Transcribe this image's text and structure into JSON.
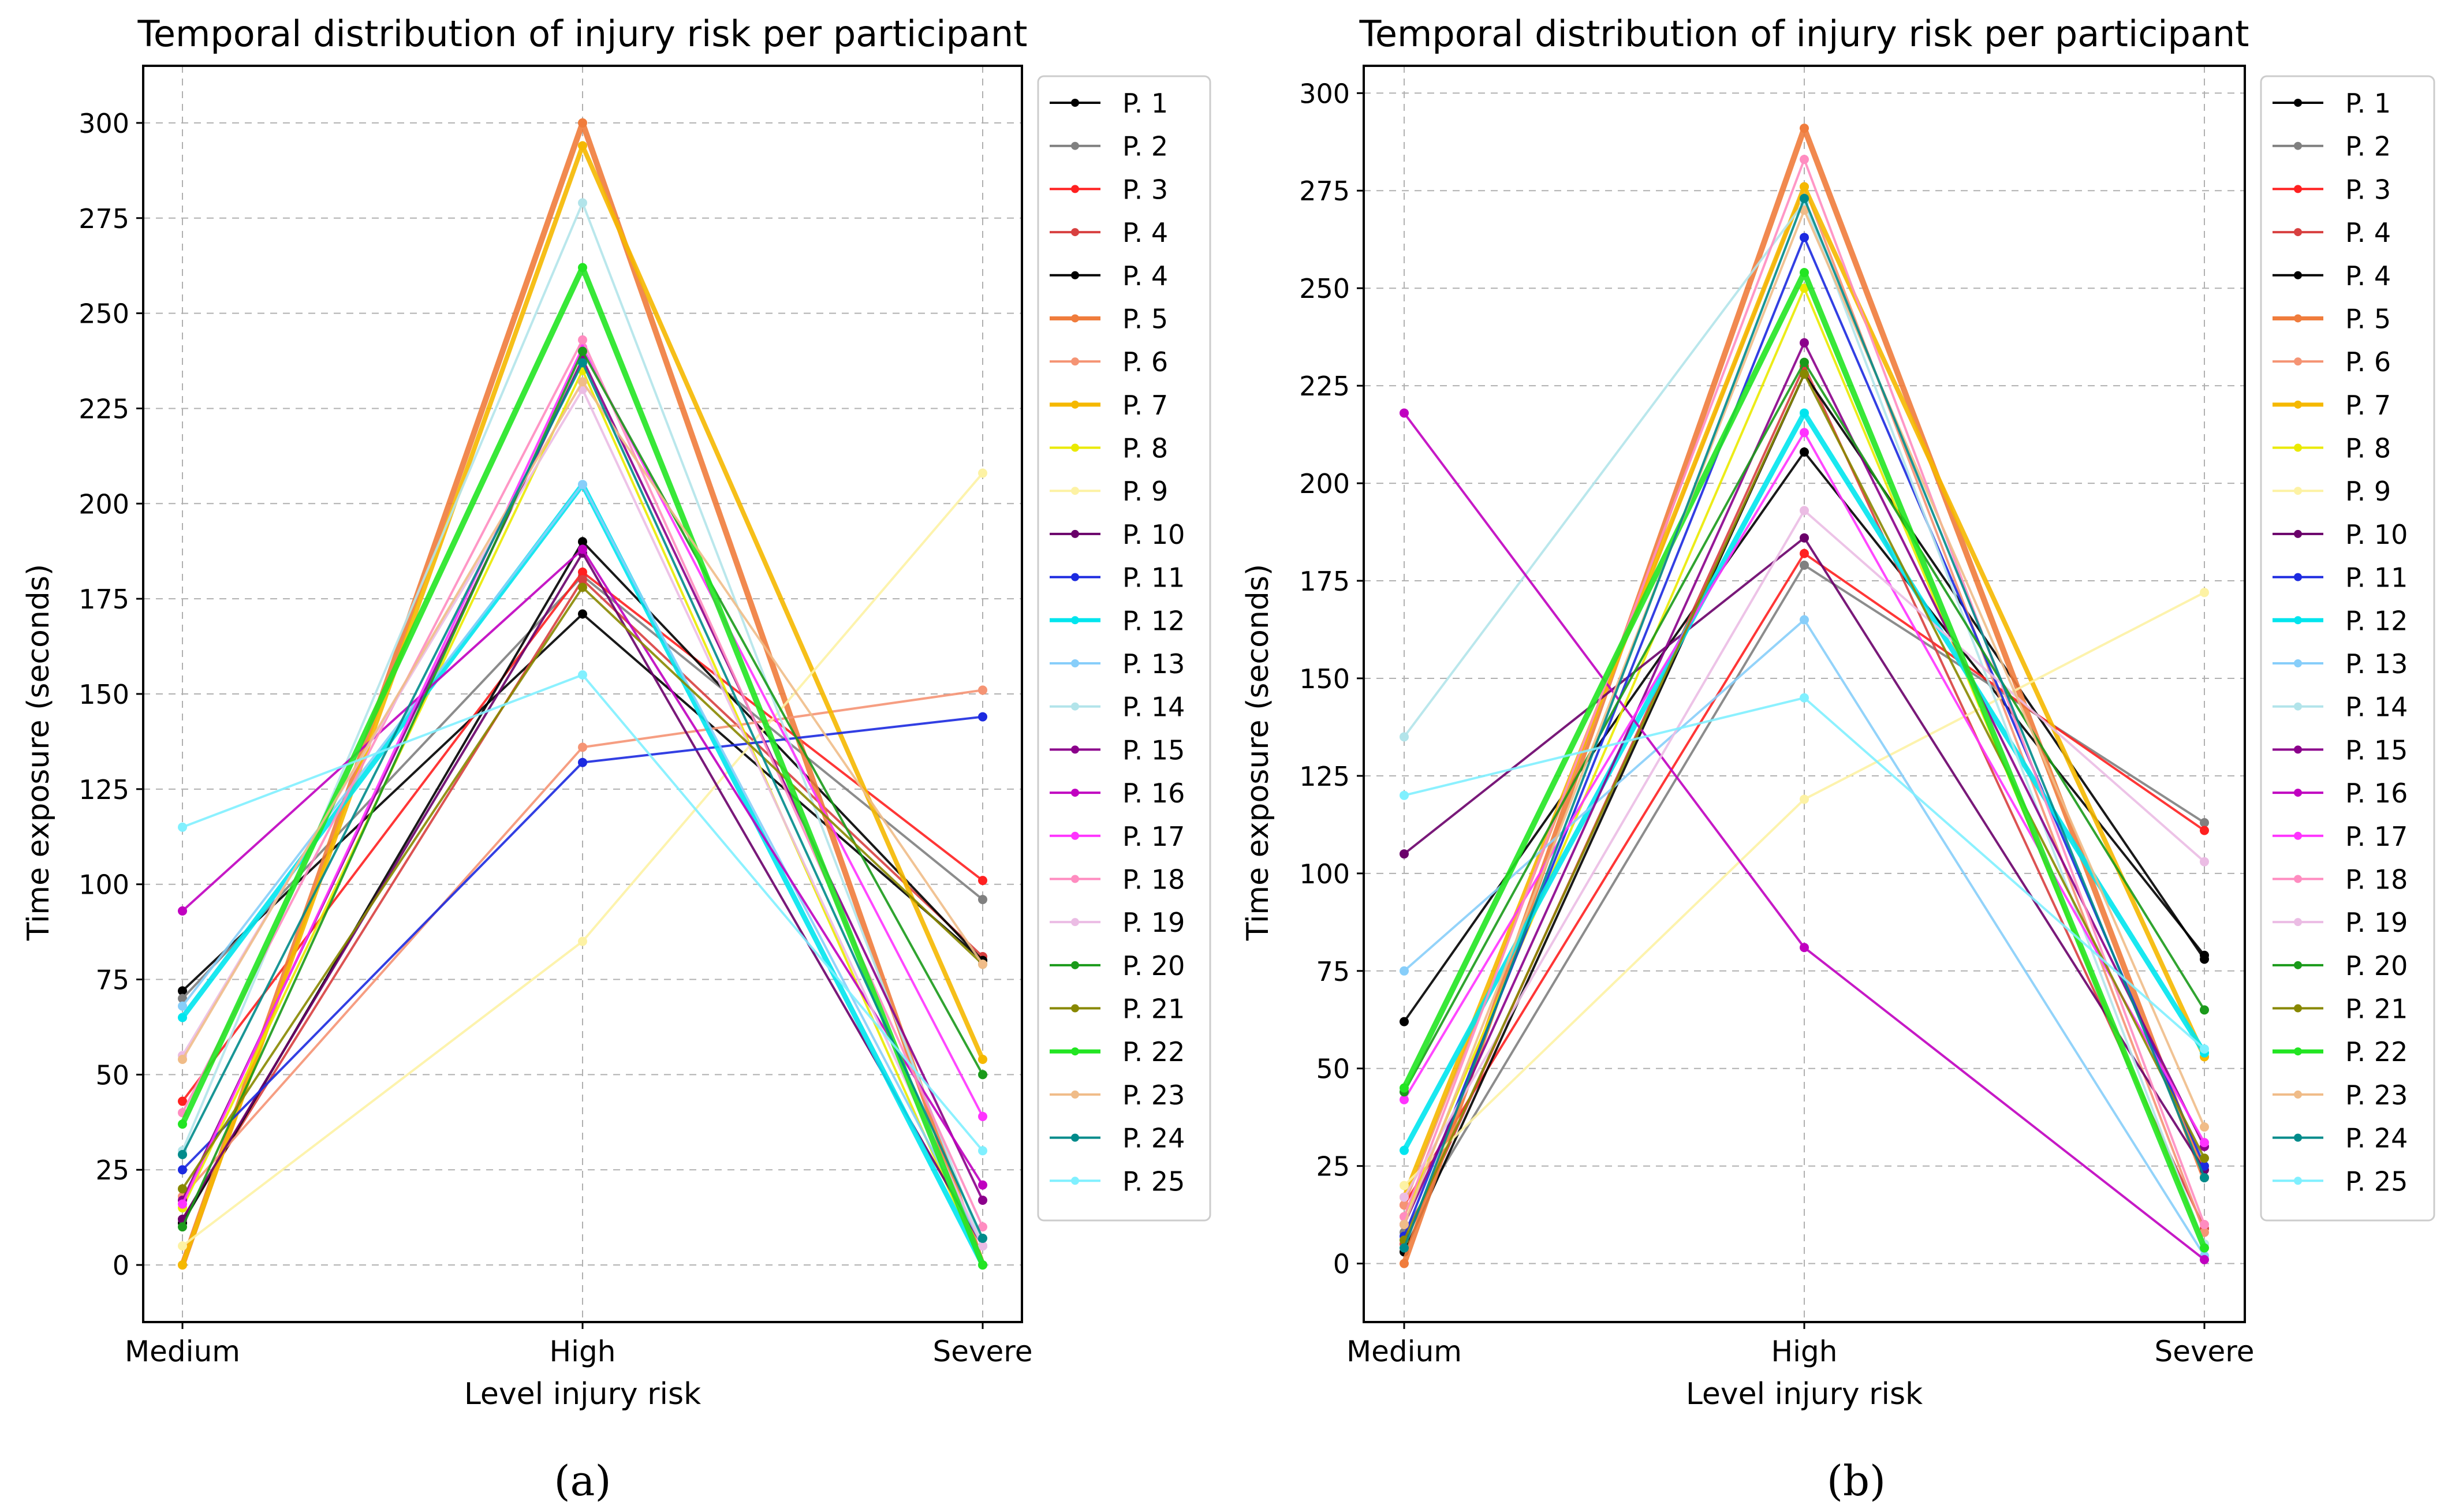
{
  "figure": {
    "panel_tags": [
      "(a)",
      "(b)"
    ]
  },
  "colors": [
    "#000000",
    "#808080",
    "#ff2020",
    "#d84040",
    "#000000",
    "#f07c3c",
    "#f59474",
    "#f5b800",
    "#eaea00",
    "#fdf2a4",
    "#6a006a",
    "#1c2ae0",
    "#00e5ee",
    "#87cefa",
    "#b2e4ea",
    "#8b008b",
    "#c000c0",
    "#ff33ff",
    "#ff8cc0",
    "#ebbce4",
    "#1a9a1a",
    "#888800",
    "#22e522",
    "#f0bc88",
    "#008b8b",
    "#80f0ff"
  ],
  "chart_data": [
    {
      "type": "line",
      "title": "Temporal distribution of injury risk per participant",
      "xlabel": "Level injury risk",
      "ylabel": "Time exposure (seconds)",
      "categories": [
        "Medium",
        "High",
        "Severe"
      ],
      "ylim": [
        -15,
        315
      ],
      "yticks": [
        0,
        25,
        50,
        75,
        100,
        125,
        150,
        175,
        200,
        225,
        250,
        275,
        300
      ],
      "grid": true,
      "legend_position": "outside-right",
      "series": [
        {
          "name": "P. 1",
          "values": [
            72,
            171,
            80
          ]
        },
        {
          "name": "P. 2",
          "values": [
            70,
            181,
            96
          ]
        },
        {
          "name": "P. 3",
          "values": [
            43,
            182,
            101
          ]
        },
        {
          "name": "P. 4",
          "values": [
            12,
            180,
            81
          ]
        },
        {
          "name": "P. 4",
          "values": [
            11,
            190,
            80
          ]
        },
        {
          "name": "P. 5",
          "values": [
            0,
            300,
            0
          ]
        },
        {
          "name": "P. 6",
          "values": [
            18,
            136,
            151
          ]
        },
        {
          "name": "P. 7",
          "values": [
            0,
            294,
            54
          ]
        },
        {
          "name": "P. 8",
          "values": [
            15,
            235,
            0
          ]
        },
        {
          "name": "P. 9",
          "values": [
            5,
            85,
            208
          ]
        },
        {
          "name": "P. 10",
          "values": [
            12,
            187,
            5
          ]
        },
        {
          "name": "P. 11",
          "values": [
            25,
            132,
            144
          ]
        },
        {
          "name": "P. 12",
          "values": [
            65,
            205,
            0
          ]
        },
        {
          "name": "P. 13",
          "values": [
            68,
            205,
            5
          ]
        },
        {
          "name": "P. 14",
          "values": [
            30,
            279,
            5
          ]
        },
        {
          "name": "P. 15",
          "values": [
            17,
            238,
            17
          ]
        },
        {
          "name": "P. 16",
          "values": [
            93,
            188,
            21
          ]
        },
        {
          "name": "P. 17",
          "values": [
            16,
            241,
            39
          ]
        },
        {
          "name": "P. 18",
          "values": [
            40,
            243,
            10
          ]
        },
        {
          "name": "P. 19",
          "values": [
            55,
            230,
            5
          ]
        },
        {
          "name": "P. 20",
          "values": [
            10,
            240,
            50
          ]
        },
        {
          "name": "P. 21",
          "values": [
            20,
            178,
            79
          ]
        },
        {
          "name": "P. 22",
          "values": [
            37,
            262,
            0
          ]
        },
        {
          "name": "P. 23",
          "values": [
            54,
            232,
            79
          ]
        },
        {
          "name": "P. 24",
          "values": [
            29,
            237,
            7
          ]
        },
        {
          "name": "P. 25",
          "values": [
            115,
            155,
            30
          ]
        }
      ]
    },
    {
      "type": "line",
      "title": "Temporal distribution of injury risk per participant",
      "xlabel": "Level injury risk",
      "ylabel": "Time exposure (seconds)",
      "categories": [
        "Medium",
        "High",
        "Severe"
      ],
      "ylim": [
        -15,
        307
      ],
      "yticks": [
        0,
        25,
        50,
        75,
        100,
        125,
        150,
        175,
        200,
        225,
        250,
        275,
        300
      ],
      "grid": true,
      "legend_position": "outside-right",
      "series": [
        {
          "name": "P. 1",
          "values": [
            62,
            208,
            79
          ]
        },
        {
          "name": "P. 2",
          "values": [
            8,
            179,
            113
          ]
        },
        {
          "name": "P. 3",
          "values": [
            15,
            182,
            111
          ]
        },
        {
          "name": "P. 4",
          "values": [
            5,
            230,
            9
          ]
        },
        {
          "name": "P. 4",
          "values": [
            3,
            228,
            78
          ]
        },
        {
          "name": "P. 5",
          "values": [
            0,
            291,
            22
          ]
        },
        {
          "name": "P. 6",
          "values": [
            15,
            276,
            8
          ]
        },
        {
          "name": "P. 7",
          "values": [
            17,
            276,
            53
          ]
        },
        {
          "name": "P. 8",
          "values": [
            12,
            250,
            5
          ]
        },
        {
          "name": "P. 9",
          "values": [
            20,
            119,
            172
          ]
        },
        {
          "name": "P. 10",
          "values": [
            105,
            186,
            24
          ]
        },
        {
          "name": "P. 11",
          "values": [
            7,
            263,
            25
          ]
        },
        {
          "name": "P. 12",
          "values": [
            29,
            218,
            54
          ]
        },
        {
          "name": "P. 13",
          "values": [
            75,
            165,
            2
          ]
        },
        {
          "name": "P. 14",
          "values": [
            135,
            272,
            5
          ]
        },
        {
          "name": "P. 15",
          "values": [
            10,
            236,
            30
          ]
        },
        {
          "name": "P. 16",
          "values": [
            218,
            81,
            1
          ]
        },
        {
          "name": "P. 17",
          "values": [
            42,
            213,
            31
          ]
        },
        {
          "name": "P. 18",
          "values": [
            12,
            283,
            10
          ]
        },
        {
          "name": "P. 19",
          "values": [
            17,
            193,
            103
          ]
        },
        {
          "name": "P. 20",
          "values": [
            44,
            231,
            65
          ]
        },
        {
          "name": "P. 21",
          "values": [
            6,
            228,
            27
          ]
        },
        {
          "name": "P. 22",
          "values": [
            45,
            254,
            4
          ]
        },
        {
          "name": "P. 23",
          "values": [
            10,
            270,
            35
          ]
        },
        {
          "name": "P. 24",
          "values": [
            4,
            273,
            22
          ]
        },
        {
          "name": "P. 25",
          "values": [
            120,
            145,
            55
          ]
        }
      ]
    }
  ]
}
